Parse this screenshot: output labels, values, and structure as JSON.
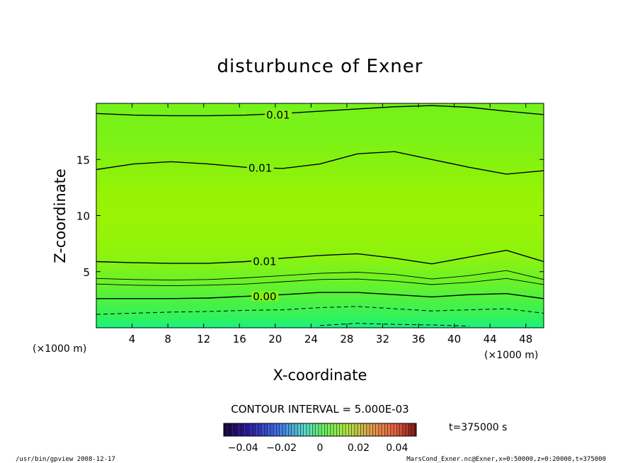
{
  "chart_data": {
    "type": "contour",
    "title": "disturbunce of Exner",
    "xlabel": "X-coordinate",
    "ylabel": "Z-coordinate",
    "x_unit_left": "(×1000 m)",
    "x_unit_right": "(×1000 m)",
    "xlim": [
      0,
      50
    ],
    "ylim": [
      0,
      20
    ],
    "x_ticks": [
      4,
      8,
      12,
      16,
      20,
      24,
      28,
      32,
      36,
      40,
      44,
      48
    ],
    "y_ticks": [
      5,
      10,
      15
    ],
    "contours": [
      {
        "label": "0.01",
        "label_x": 19,
        "z": [
          19.1,
          18.95,
          18.9,
          18.9,
          18.95,
          19.1,
          19.3,
          19.5,
          19.7,
          19.8,
          19.65,
          19.3,
          19.0
        ]
      },
      {
        "label": "0.01",
        "label_x": 17,
        "z": [
          14.1,
          14.6,
          14.8,
          14.6,
          14.3,
          14.2,
          14.6,
          15.5,
          15.7,
          15.0,
          14.3,
          13.7,
          14.0
        ]
      },
      {
        "label": "0.01",
        "label_x": 17.5,
        "z": [
          5.9,
          5.8,
          5.75,
          5.75,
          5.9,
          6.2,
          6.45,
          6.6,
          6.2,
          5.7,
          6.3,
          6.9,
          5.9
        ]
      },
      {
        "label": "",
        "label_x": null,
        "z": [
          4.4,
          4.3,
          4.25,
          4.3,
          4.45,
          4.65,
          4.85,
          4.95,
          4.75,
          4.35,
          4.65,
          5.1,
          4.3
        ]
      },
      {
        "label": "",
        "label_x": null,
        "z": [
          3.9,
          3.8,
          3.75,
          3.8,
          3.9,
          4.1,
          4.3,
          4.35,
          4.15,
          3.85,
          4.05,
          4.4,
          3.85
        ]
      },
      {
        "label": "0.00",
        "label_x": 17.5,
        "z": [
          2.6,
          2.6,
          2.6,
          2.65,
          2.8,
          2.95,
          3.15,
          3.15,
          2.95,
          2.75,
          2.95,
          3.05,
          2.6
        ]
      },
      {
        "label": "",
        "label_x": null,
        "dashed": true,
        "z": [
          1.2,
          1.3,
          1.4,
          1.45,
          1.55,
          1.6,
          1.8,
          1.9,
          1.7,
          1.5,
          1.6,
          1.7,
          1.3
        ]
      },
      {
        "label": "",
        "label_x": null,
        "dashed": true,
        "z": [
          null,
          null,
          null,
          null,
          null,
          null,
          0.2,
          0.4,
          0.3,
          0.25,
          0.15,
          null,
          null
        ]
      }
    ],
    "contour_interval_text": "CONTOUR INTERVAL = 5.000E-03",
    "time_text": "t=375000 s",
    "colorbar": {
      "ticks": [
        "−0.04",
        "−0.02",
        "0",
        "0.02",
        "0.04"
      ],
      "tick_values": [
        -0.04,
        -0.02,
        0,
        0.02,
        0.04
      ],
      "range": [
        -0.05,
        0.05
      ]
    }
  },
  "footer": {
    "left": "/usr/bin/gpview   2008-12-17",
    "right": "MarsCond_Exner.nc@Exner,x=0:50000,z=0:20000,t=375000"
  }
}
